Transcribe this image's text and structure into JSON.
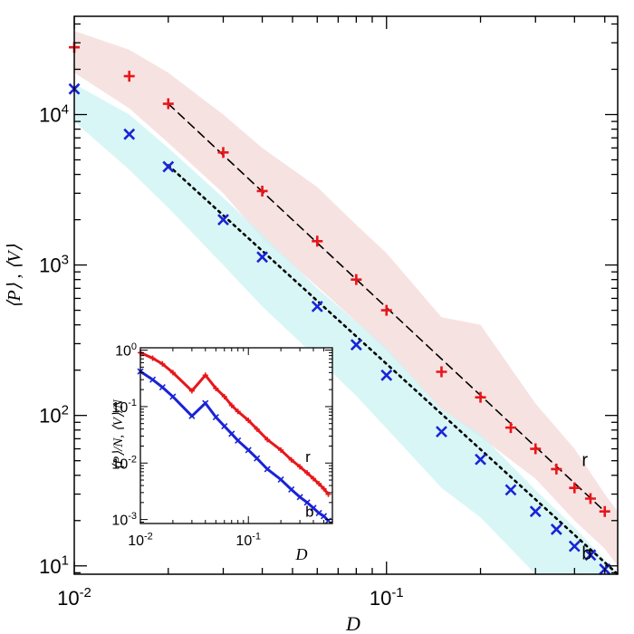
{
  "chart_data": [
    {
      "type": "scatter",
      "id": "main",
      "xscale": "log",
      "yscale": "log",
      "xlim": [
        0.01,
        0.55
      ],
      "ylim": [
        8.8,
        45000
      ],
      "xlabel": "D",
      "ylabel": "⟨P⟩ , ⟨V⟩",
      "xticks": [
        {
          "value": 0.01,
          "base": "10",
          "exp": "-2"
        },
        {
          "value": 0.1,
          "base": "10",
          "exp": "-1"
        }
      ],
      "yticks": [
        {
          "value": 10,
          "base": "10",
          "exp": "1"
        },
        {
          "value": 100,
          "base": "10",
          "exp": "2"
        },
        {
          "value": 1000,
          "base": "10",
          "exp": "3"
        },
        {
          "value": 10000,
          "base": "10",
          "exp": "4"
        }
      ],
      "colors": {
        "r": "#e8161a",
        "b": "#1a23d6",
        "r_band": "#f5dada",
        "b_band": "#cdf4f4",
        "fit": "#000000"
      },
      "series": [
        {
          "name": "r",
          "marker": "plus",
          "color": "#e8161a",
          "x": [
            0.01,
            0.015,
            0.02,
            0.03,
            0.04,
            0.06,
            0.08,
            0.1,
            0.15,
            0.2,
            0.25,
            0.3,
            0.35,
            0.4,
            0.45,
            0.5,
            0.55
          ],
          "y": [
            28000,
            18000,
            11800,
            5600,
            3100,
            1440,
            800,
            500,
            195,
            132,
            83,
            60,
            44,
            33,
            28,
            23,
            null
          ]
        },
        {
          "name": "b",
          "marker": "cross",
          "color": "#1a23d6",
          "x": [
            0.01,
            0.015,
            0.02,
            0.03,
            0.04,
            0.06,
            0.08,
            0.1,
            0.15,
            0.2,
            0.25,
            0.3,
            0.35,
            0.4,
            0.45,
            0.5,
            0.55
          ],
          "y": [
            14800,
            7400,
            4500,
            2000,
            1130,
            530,
            295,
            185,
            78,
            51,
            32,
            23,
            17.5,
            13.5,
            11.8,
            9.5,
            null
          ]
        }
      ],
      "bands": [
        {
          "name": "r",
          "x": [
            0.01,
            0.015,
            0.02,
            0.03,
            0.04,
            0.06,
            0.08,
            0.1,
            0.15,
            0.2,
            0.3,
            0.4,
            0.5,
            0.55
          ],
          "upper": [
            36000,
            27000,
            19000,
            10000,
            6000,
            3300,
            1850,
            1200,
            450,
            400,
            120,
            60,
            30,
            23
          ],
          "lower": [
            19000,
            11000,
            6500,
            3000,
            1500,
            720,
            420,
            270,
            110,
            72,
            38,
            20,
            13,
            10
          ]
        },
        {
          "name": "b",
          "x": [
            0.01,
            0.015,
            0.02,
            0.03,
            0.04,
            0.06,
            0.08,
            0.1,
            0.15,
            0.2,
            0.3,
            0.4,
            0.5,
            0.55
          ],
          "upper": [
            16000,
            10000,
            6000,
            2800,
            1600,
            700,
            420,
            280,
            110,
            75,
            32,
            18,
            11,
            8.8
          ],
          "lower": [
            9000,
            4300,
            2400,
            1000,
            530,
            240,
            135,
            82,
            33,
            21,
            8.8,
            8.8,
            8.8,
            8.8
          ]
        }
      ],
      "fits": [
        {
          "name": "r",
          "style": "dashed",
          "x": [
            0.02,
            0.5
          ],
          "y": [
            11800,
            23
          ]
        },
        {
          "name": "b",
          "style": "dotted",
          "x": [
            0.02,
            0.55
          ],
          "y": [
            4600,
            8.8
          ]
        }
      ],
      "annotations": [
        {
          "text": "r",
          "x": 0.4,
          "y": 50
        },
        {
          "text": "b",
          "x": 0.4,
          "y": 12
        }
      ]
    },
    {
      "type": "line",
      "id": "inset",
      "xscale": "log",
      "yscale": "log",
      "xlim": [
        0.01,
        0.6
      ],
      "ylim": [
        0.00085,
        1.1
      ],
      "xlabel": "D",
      "ylabel": "⟨P⟩/N,  ⟨V⟩/N",
      "xticks": [
        {
          "value": 0.01,
          "base": "10",
          "exp": "-2"
        },
        {
          "value": 0.1,
          "base": "10",
          "exp": "-1"
        }
      ],
      "yticks": [
        {
          "value": 0.001,
          "base": "10",
          "exp": "-3"
        },
        {
          "value": 0.01,
          "base": "10",
          "exp": "-2"
        },
        {
          "value": 0.1,
          "base": "10",
          "exp": "-1"
        },
        {
          "value": 1,
          "base": "10",
          "exp": "0"
        }
      ],
      "series": [
        {
          "name": "r",
          "color": "#e8161a",
          "x": [
            0.01,
            0.013,
            0.016,
            0.02,
            0.03,
            0.04,
            0.05,
            0.06,
            0.07,
            0.08,
            0.1,
            0.12,
            0.15,
            0.2,
            0.25,
            0.3,
            0.35,
            0.4,
            0.45,
            0.5,
            0.55
          ],
          "y": [
            0.9,
            0.72,
            0.57,
            0.4,
            0.19,
            0.36,
            0.21,
            0.15,
            0.105,
            0.082,
            0.057,
            0.04,
            0.026,
            0.017,
            0.0114,
            0.0086,
            0.0067,
            0.0053,
            0.0043,
            0.0035,
            0.0028
          ]
        },
        {
          "name": "b",
          "color": "#1a23d6",
          "x": [
            0.01,
            0.013,
            0.016,
            0.02,
            0.03,
            0.04,
            0.05,
            0.06,
            0.07,
            0.08,
            0.1,
            0.12,
            0.15,
            0.2,
            0.25,
            0.3,
            0.35,
            0.4,
            0.45,
            0.5,
            0.55
          ],
          "y": [
            0.42,
            0.3,
            0.22,
            0.15,
            0.068,
            0.115,
            0.065,
            0.045,
            0.033,
            0.025,
            0.017,
            0.0121,
            0.0078,
            0.0051,
            0.0034,
            0.0025,
            0.002,
            0.0016,
            0.0013,
            0.00115,
            0.00095
          ]
        }
      ],
      "annotations": [
        {
          "text": "r",
          "x": 0.3,
          "y": 0.0125
        },
        {
          "text": "b",
          "x": 0.3,
          "y": 0.00135
        }
      ]
    }
  ]
}
